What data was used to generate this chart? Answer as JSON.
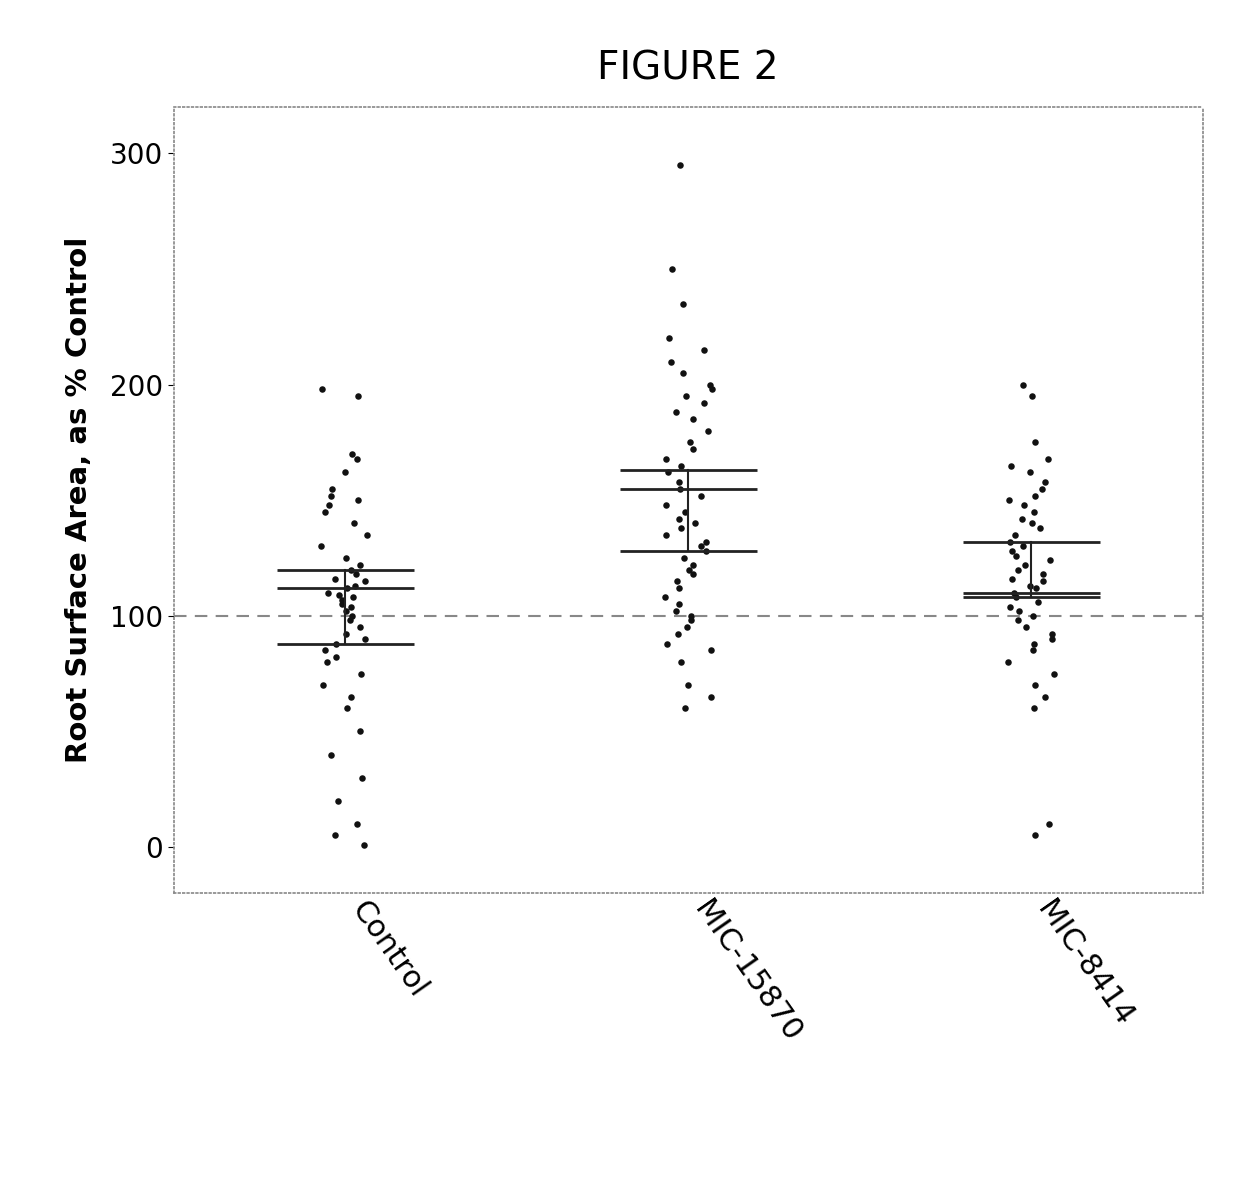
{
  "title": "FIGURE 2",
  "ylabel": "Root Surface Area, as % Control",
  "xlabels": [
    "Control",
    "MIC-15870",
    "MIC-8414"
  ],
  "xlim": [
    0.5,
    3.5
  ],
  "ylim": [
    -20,
    320
  ],
  "yticks": [
    0,
    100,
    200,
    300
  ],
  "dashed_line_y": 100,
  "background_color": "#ffffff",
  "dot_color": "#111111",
  "error_bar_color": "#222222",
  "groups": {
    "Control": {
      "mean": 112,
      "upper": 120,
      "lower": 88,
      "points": [
        195,
        198,
        170,
        168,
        162,
        155,
        152,
        150,
        148,
        145,
        140,
        135,
        130,
        125,
        122,
        120,
        118,
        116,
        115,
        113,
        112,
        110,
        109,
        108,
        107,
        105,
        104,
        102,
        100,
        98,
        95,
        92,
        90,
        88,
        85,
        82,
        80,
        75,
        70,
        65,
        60,
        50,
        40,
        30,
        20,
        10,
        5,
        1
      ]
    },
    "MIC-15870": {
      "mean": 155,
      "upper": 163,
      "lower": 128,
      "points": [
        295,
        250,
        235,
        220,
        215,
        210,
        205,
        200,
        198,
        195,
        192,
        188,
        185,
        180,
        175,
        172,
        168,
        165,
        162,
        158,
        155,
        152,
        148,
        145,
        142,
        140,
        138,
        135,
        132,
        130,
        128,
        125,
        122,
        120,
        118,
        115,
        112,
        108,
        105,
        102,
        100,
        98,
        95,
        92,
        88,
        85,
        80,
        70,
        65,
        60
      ]
    },
    "MIC-8414": {
      "mean": 110,
      "upper": 132,
      "lower": 108,
      "points": [
        200,
        195,
        175,
        168,
        165,
        162,
        158,
        155,
        152,
        150,
        148,
        145,
        142,
        140,
        138,
        135,
        132,
        130,
        128,
        126,
        124,
        122,
        120,
        118,
        116,
        115,
        113,
        112,
        110,
        108,
        106,
        104,
        102,
        100,
        98,
        95,
        92,
        90,
        88,
        85,
        80,
        75,
        70,
        65,
        60,
        10,
        5
      ]
    }
  }
}
